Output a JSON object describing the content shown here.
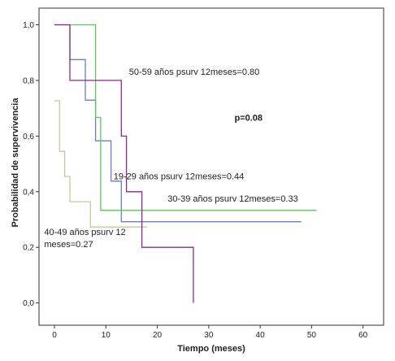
{
  "chart_data": {
    "type": "line",
    "subtype": "kaplan-meier step",
    "xlabel": "Tiempo (meses)",
    "ylabel": "Probabilidad de supervivencia",
    "xlim": [
      -3,
      64
    ],
    "ylim": [
      -0.08,
      1.06
    ],
    "x_ticks": [
      0,
      10,
      20,
      30,
      40,
      50,
      60
    ],
    "y_ticks": [
      0.0,
      0.2,
      0.4,
      0.6,
      0.8,
      1.0
    ],
    "y_tick_labels": [
      "0,0",
      "0,2",
      "0,4",
      "0,6",
      "0,8",
      "1,0"
    ],
    "grid": false,
    "series": [
      {
        "color": "#c8c89a",
        "points": [
          [
            0,
            0.727
          ],
          [
            1,
            0.727
          ],
          [
            1,
            0.545
          ],
          [
            2,
            0.545
          ],
          [
            2,
            0.455
          ],
          [
            3,
            0.455
          ],
          [
            3,
            0.364
          ],
          [
            7,
            0.364
          ],
          [
            7,
            0.273
          ],
          [
            18,
            0.273
          ]
        ]
      },
      {
        "color": "#6b7fc4",
        "points": [
          [
            3,
            1.0
          ],
          [
            3,
            0.875
          ],
          [
            6,
            0.875
          ],
          [
            6,
            0.729
          ],
          [
            8,
            0.729
          ],
          [
            8,
            0.583
          ],
          [
            11,
            0.583
          ],
          [
            11,
            0.438
          ],
          [
            13,
            0.438
          ],
          [
            13,
            0.292
          ],
          [
            48,
            0.292
          ]
        ]
      },
      {
        "color": "#5cc85c",
        "points": [
          [
            0,
            1.0
          ],
          [
            8,
            1.0
          ],
          [
            8,
            0.667
          ],
          [
            9,
            0.667
          ],
          [
            9,
            0.333
          ],
          [
            51,
            0.333
          ]
        ]
      },
      {
        "color": "#8a2b8a",
        "points": [
          [
            0,
            1.0
          ],
          [
            3,
            1.0
          ],
          [
            3,
            0.8
          ],
          [
            13,
            0.8
          ],
          [
            13,
            0.6
          ],
          [
            14,
            0.6
          ],
          [
            14,
            0.4
          ],
          [
            17,
            0.4
          ],
          [
            17,
            0.2
          ],
          [
            27,
            0.2
          ],
          [
            27,
            0.0
          ]
        ]
      }
    ],
    "annotations": [
      {
        "text": "50-59 años psurv 12meses=0.80",
        "x": 14.5,
        "y": 0.82
      },
      {
        "text": "p=0.08",
        "x": 35,
        "y": 0.655,
        "bold": true
      },
      {
        "text": "19-29 años psurv 12meses=0.44",
        "x": 11.5,
        "y": 0.445
      },
      {
        "text": "30-39 años psurv 12meses=0.33",
        "x": 22,
        "y": 0.365
      },
      {
        "text": "40-49 años psurv 12",
        "x": -2,
        "y": 0.245
      },
      {
        "text": "meses=0.27",
        "x": -2,
        "y": 0.2
      }
    ]
  }
}
